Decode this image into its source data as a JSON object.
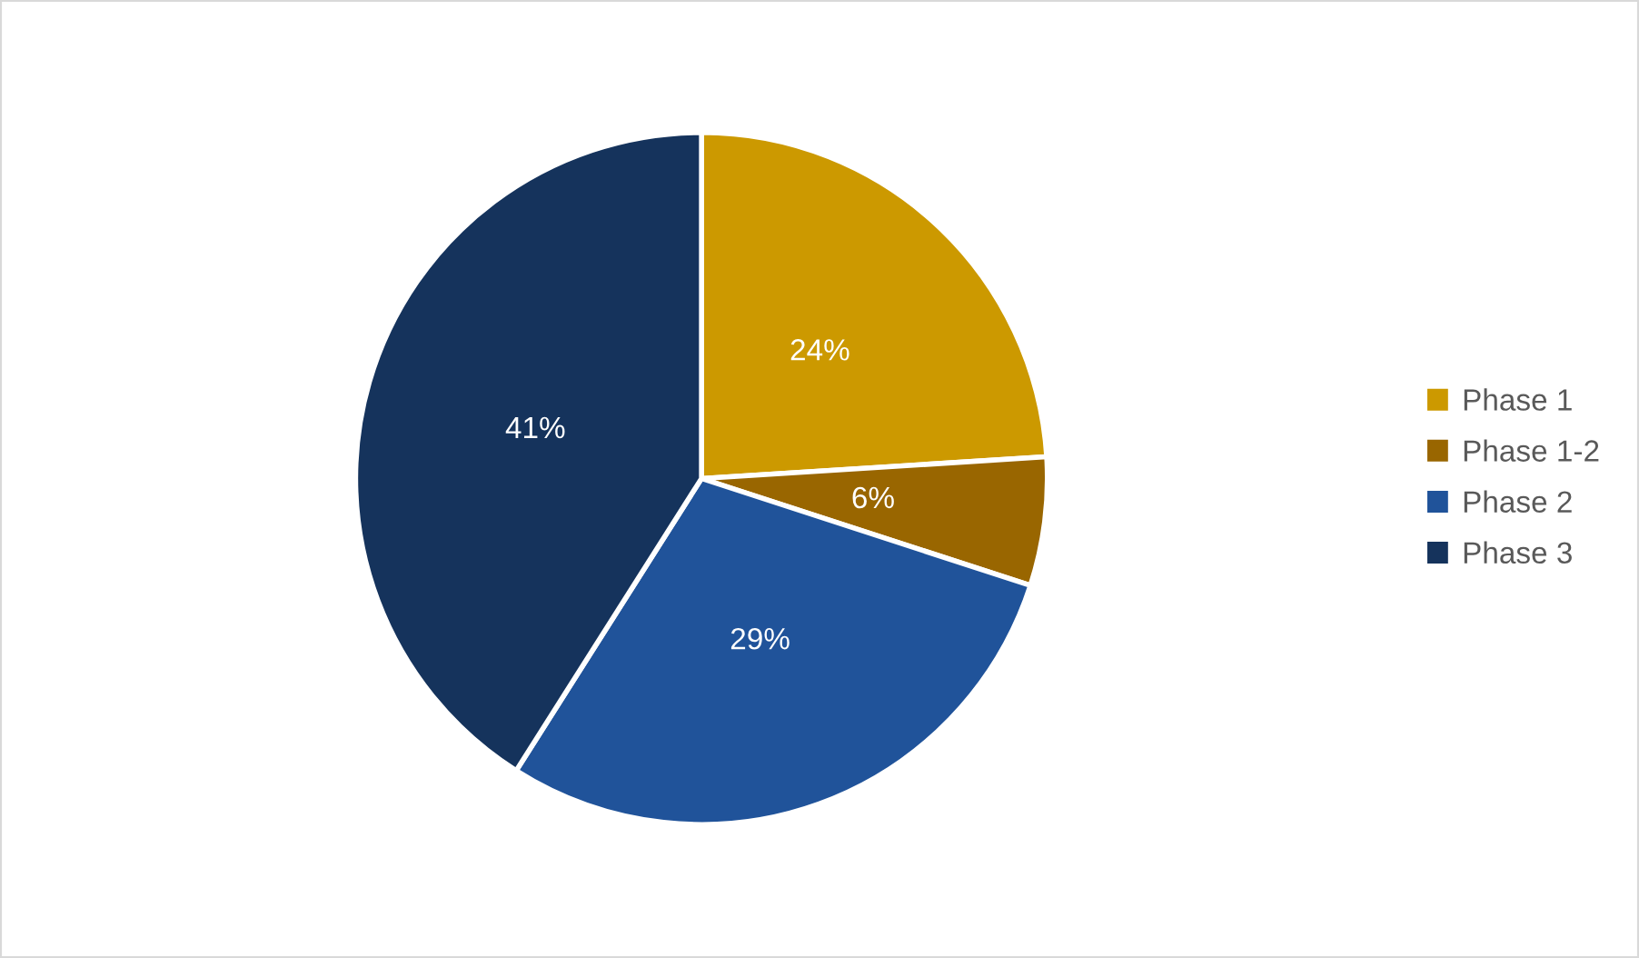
{
  "chart_data": {
    "type": "pie",
    "categories": [
      "Phase 1",
      "Phase 1-2",
      "Phase 2",
      "Phase 3"
    ],
    "values": [
      24,
      6,
      29,
      41
    ],
    "value_labels": [
      "24%",
      "6%",
      "29%",
      "41%"
    ],
    "colors": [
      "#cc9900",
      "#996600",
      "#20539a",
      "#15335c"
    ],
    "legend": "right"
  }
}
